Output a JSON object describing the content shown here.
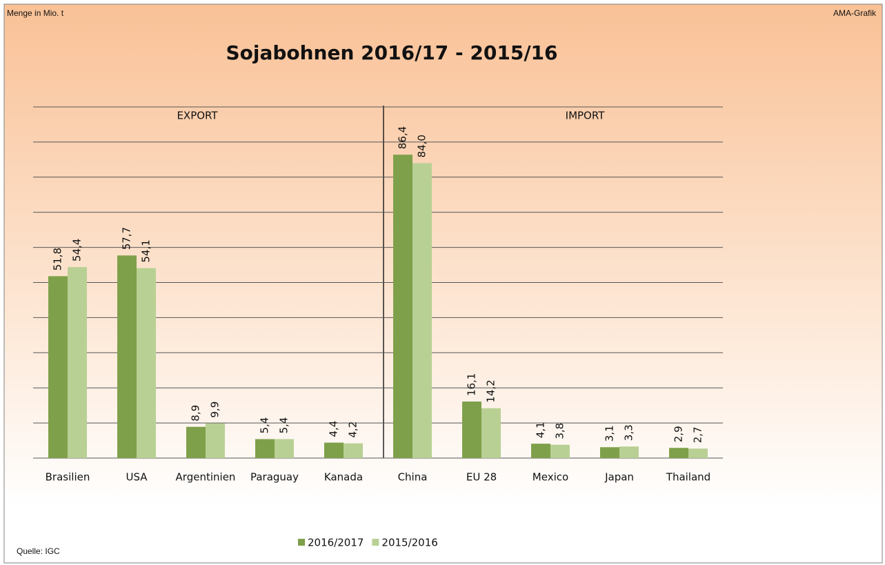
{
  "chart_data": {
    "type": "bar",
    "title": "Sojabohnen 2016/17 - 2015/16",
    "unit_label": "Menge  in Mio. t",
    "credit": "AMA-Grafik",
    "source": "Quelle: IGC",
    "sections": [
      "EXPORT",
      "IMPORT"
    ],
    "categories": [
      "Brasilien",
      "USA",
      "Argentinien",
      "Paraguay",
      "Kanada",
      "China",
      "EU 28",
      "Mexico",
      "Japan",
      "Thailand"
    ],
    "series": [
      {
        "name": "2016/2017",
        "color": "#7fa04a",
        "values": [
          51.8,
          57.7,
          8.9,
          5.4,
          4.4,
          86.4,
          16.1,
          4.1,
          3.1,
          2.9
        ],
        "value_labels": [
          "51,8",
          "57,7",
          "8,9",
          "5,4",
          "4,4",
          "86,4",
          "16,1",
          "4,1",
          "3,1",
          "2,9"
        ]
      },
      {
        "name": "2015/2016",
        "color": "#b9d094",
        "values": [
          54.4,
          54.1,
          9.9,
          5.4,
          4.2,
          84.0,
          14.2,
          3.8,
          3.3,
          2.7
        ],
        "value_labels": [
          "54,4",
          "54,1",
          "9,9",
          "5,4",
          "4,2",
          "84,0",
          "14,2",
          "3,8",
          "3,3",
          "2,7"
        ]
      }
    ],
    "ylim": [
      0,
      100
    ],
    "yticks": [
      0,
      10,
      20,
      30,
      40,
      50,
      60,
      70,
      80,
      90,
      100
    ],
    "grid": true
  }
}
